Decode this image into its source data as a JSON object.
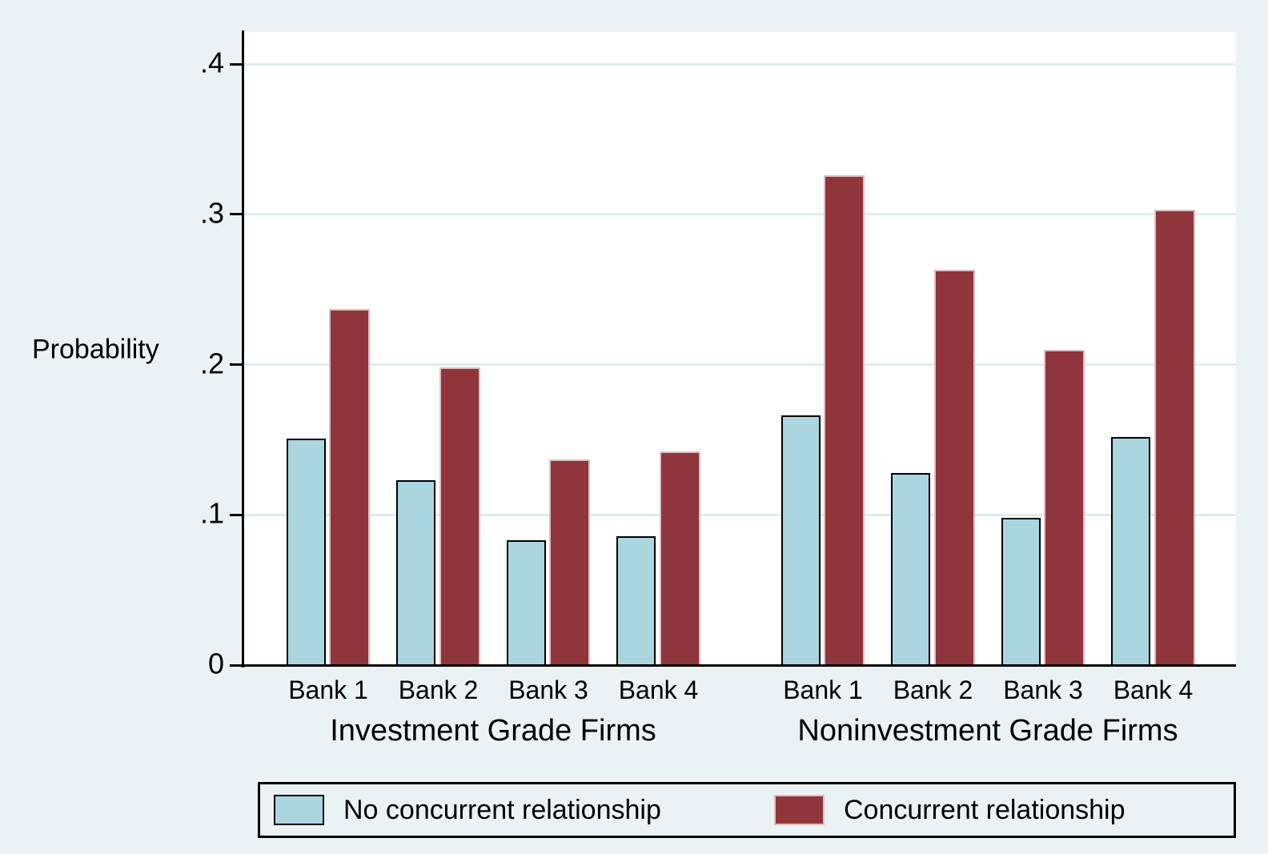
{
  "chart_data": {
    "type": "bar",
    "title": "",
    "ylabel": "Probability",
    "ylim": [
      0,
      0.4213
    ],
    "yticks": [
      0,
      0.1,
      0.2,
      0.3,
      0.4
    ],
    "ytick_labels": [
      "0",
      ".1",
      ".2",
      ".3",
      ".4"
    ],
    "grid": true,
    "groups": [
      {
        "label": "Investment Grade Firms",
        "categories": [
          "Bank 1",
          "Bank 2",
          "Bank 3",
          "Bank 4"
        ],
        "series": [
          {
            "name": "No concurrent relationship",
            "values": [
              0.151,
              0.123,
              0.083,
              0.086
            ]
          },
          {
            "name": "Concurrent relationship",
            "values": [
              0.237,
              0.198,
              0.137,
              0.142
            ]
          }
        ]
      },
      {
        "label": "Noninvestment Grade Firms",
        "categories": [
          "Bank 1",
          "Bank 2",
          "Bank 3",
          "Bank 4"
        ],
        "series": [
          {
            "name": "No concurrent relationship",
            "values": [
              0.166,
              0.128,
              0.098,
              0.152
            ]
          },
          {
            "name": "Concurrent relationship",
            "values": [
              0.326,
              0.263,
              0.21,
              0.303
            ]
          }
        ]
      }
    ],
    "legend": {
      "position": "bottom",
      "entries": [
        "No concurrent relationship",
        "Concurrent relationship"
      ]
    },
    "colors": {
      "background": "#EAF2F3",
      "plot_background": "#FFFFFF",
      "gridline": "#E2ECEF",
      "axis": "#000000",
      "no_concurrent_fill": "#ABD6E0",
      "no_concurrent_border": "#000000",
      "concurrent_fill": "#90353B",
      "concurrent_border": "#DCC0C4"
    }
  }
}
